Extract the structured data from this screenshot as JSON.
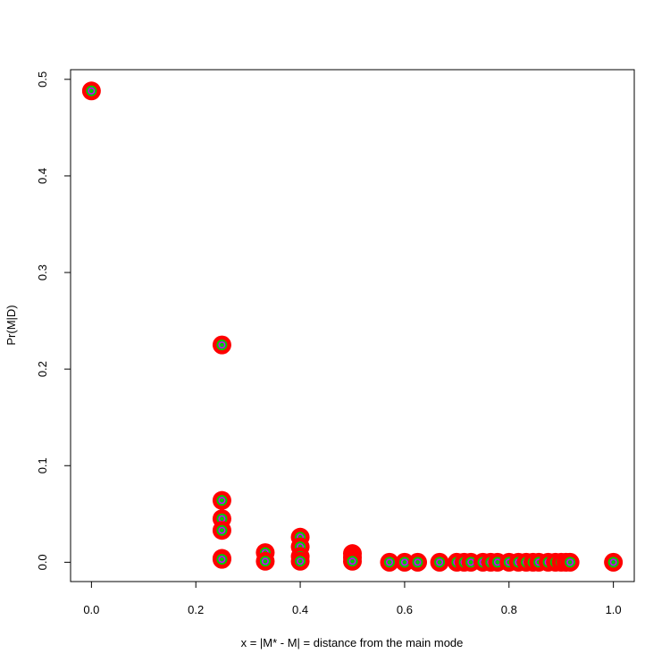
{
  "chart_data": {
    "type": "scatter",
    "title": "",
    "xlabel": "x = |M* - M| = distance from the main mode",
    "ylabel": "Pr(M|D)",
    "xlim": [
      -0.04,
      1.04
    ],
    "ylim": [
      -0.02,
      0.51
    ],
    "xticks": [
      0.0,
      0.2,
      0.4,
      0.6,
      0.8,
      1.0
    ],
    "xtick_labels": [
      "0.0",
      "0.2",
      "0.4",
      "0.6",
      "0.8",
      "1.0"
    ],
    "yticks": [
      0.0,
      0.1,
      0.2,
      0.3,
      0.4,
      0.5
    ],
    "ytick_labels": [
      "0.0",
      "0.1",
      "0.2",
      "0.3",
      "0.4",
      "0.5"
    ],
    "grid": false,
    "marker_colors": {
      "outer": "#ff0000",
      "middle": "#00cc00",
      "inner": "#cc00ff"
    },
    "points": [
      [
        0.0,
        0.488
      ],
      [
        0.25,
        0.225
      ],
      [
        0.25,
        0.064
      ],
      [
        0.25,
        0.045
      ],
      [
        0.25,
        0.033
      ],
      [
        0.25,
        0.004
      ],
      [
        0.25,
        0.003
      ],
      [
        0.333,
        0.01
      ],
      [
        0.333,
        0.001
      ],
      [
        0.4,
        0.026
      ],
      [
        0.4,
        0.016
      ],
      [
        0.4,
        0.006
      ],
      [
        0.4,
        0.001
      ],
      [
        0.5,
        0.009
      ],
      [
        0.5,
        0.005
      ],
      [
        0.5,
        0.001
      ],
      [
        0.571,
        0.0
      ],
      [
        0.6,
        0.0
      ],
      [
        0.625,
        0.0
      ],
      [
        0.667,
        0.0
      ],
      [
        0.7,
        0.0
      ],
      [
        0.714,
        0.0
      ],
      [
        0.727,
        0.0
      ],
      [
        0.75,
        0.0
      ],
      [
        0.765,
        0.0
      ],
      [
        0.778,
        0.0
      ],
      [
        0.8,
        0.0
      ],
      [
        0.818,
        0.0
      ],
      [
        0.833,
        0.0
      ],
      [
        0.846,
        0.0
      ],
      [
        0.857,
        0.0
      ],
      [
        0.875,
        0.0
      ],
      [
        0.889,
        0.0
      ],
      [
        0.9,
        0.0
      ],
      [
        0.909,
        0.0
      ],
      [
        0.917,
        0.0
      ],
      [
        1.0,
        0.0
      ]
    ]
  }
}
